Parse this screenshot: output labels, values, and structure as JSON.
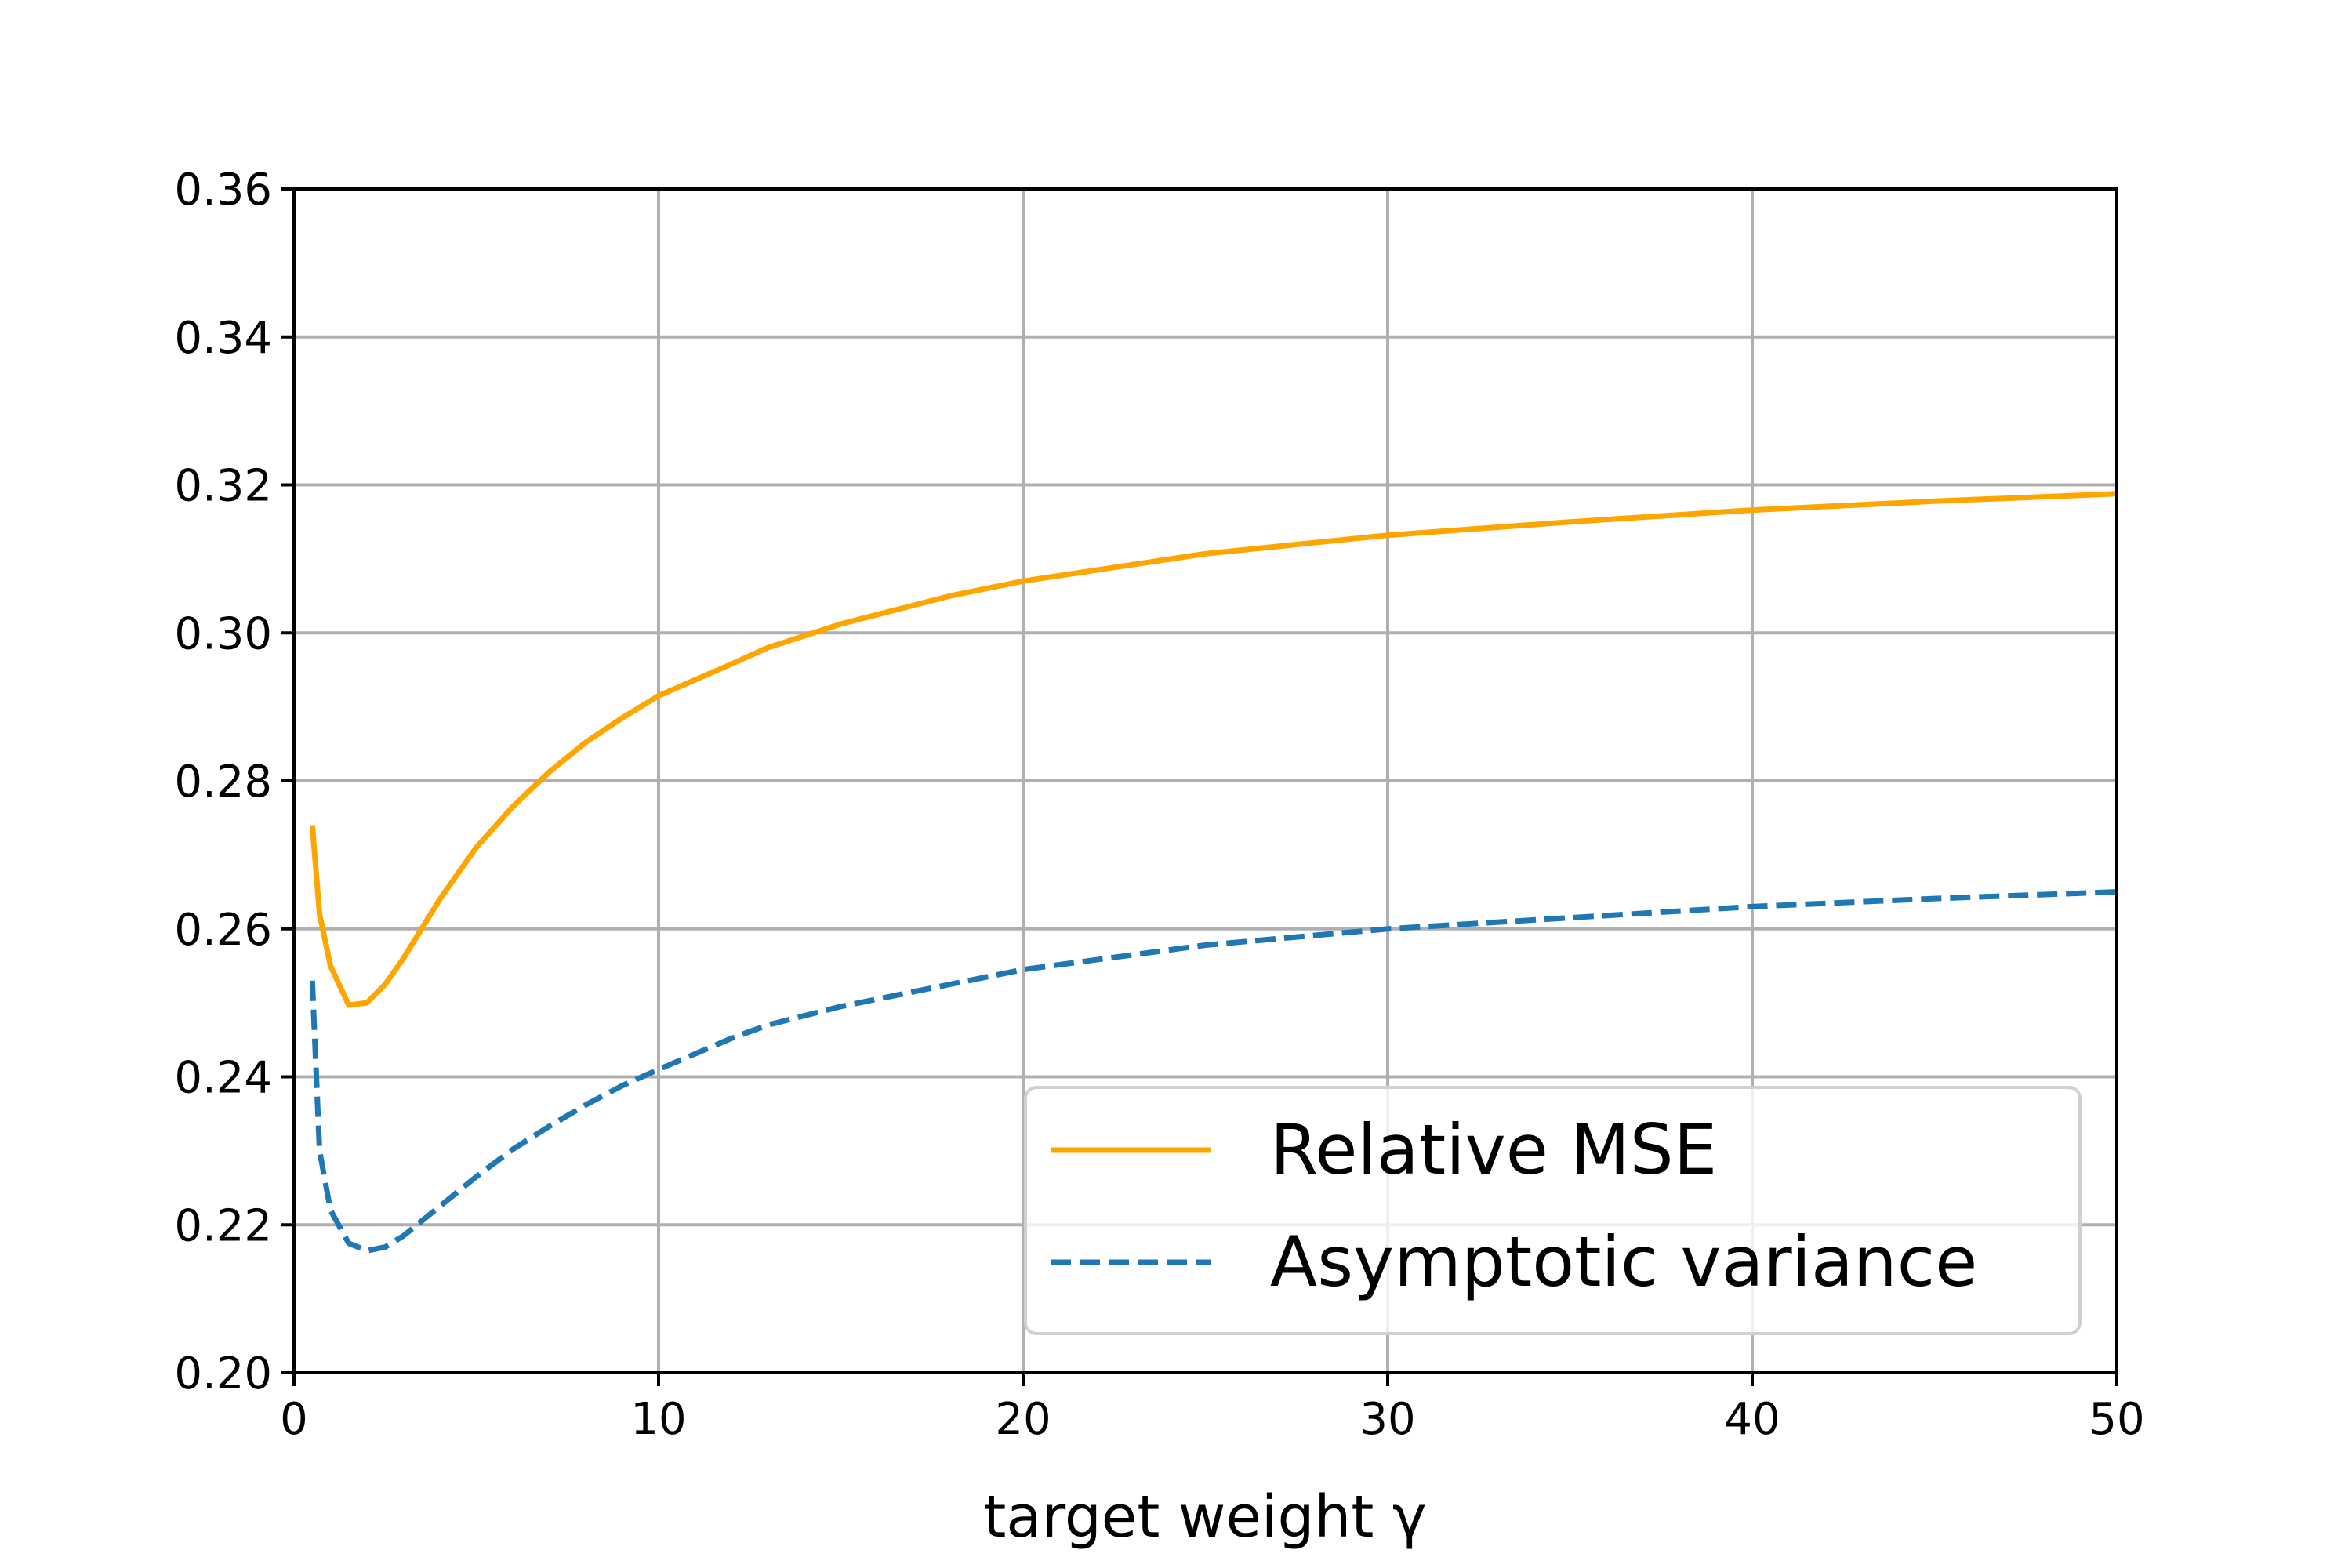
{
  "chart_data": {
    "type": "line",
    "title": "",
    "xlabel": "target weight γ",
    "ylabel": "",
    "xlim": [
      0,
      50
    ],
    "ylim": [
      0.2,
      0.36
    ],
    "xticks": [
      "0",
      "10",
      "20",
      "30",
      "40",
      "50"
    ],
    "yticks": [
      "0.20",
      "0.22",
      "0.24",
      "0.26",
      "0.28",
      "0.30",
      "0.32",
      "0.34",
      "0.36"
    ],
    "grid": true,
    "legend_position": "lower-right",
    "series": [
      {
        "name": "Relative MSE",
        "color": "#FFA500",
        "style": "solid",
        "x": [
          0.5,
          0.7,
          1.0,
          1.5,
          2.0,
          2.5,
          3,
          4,
          5,
          6,
          7,
          8,
          9,
          10,
          12,
          13,
          15,
          18,
          20,
          25,
          30,
          35,
          40,
          45,
          50
        ],
        "y": [
          0.274,
          0.262,
          0.255,
          0.2497,
          0.25,
          0.2525,
          0.256,
          0.264,
          0.271,
          0.2765,
          0.2812,
          0.2852,
          0.2885,
          0.2915,
          0.2958,
          0.298,
          0.3012,
          0.305,
          0.307,
          0.3107,
          0.3132,
          0.315,
          0.3166,
          0.3178,
          0.3188
        ]
      },
      {
        "name": "Asymptotic variance",
        "color": "#1f77b4",
        "style": "dashed",
        "x": [
          0.5,
          0.7,
          1.0,
          1.5,
          2.0,
          2.5,
          3,
          4,
          5,
          6,
          7,
          8,
          9,
          10,
          12,
          13,
          15,
          18,
          20,
          25,
          30,
          35,
          40,
          45,
          50
        ],
        "y": [
          0.253,
          0.23,
          0.222,
          0.2175,
          0.2165,
          0.217,
          0.2185,
          0.2225,
          0.2265,
          0.2302,
          0.2333,
          0.2362,
          0.2388,
          0.241,
          0.2452,
          0.247,
          0.2495,
          0.2525,
          0.2545,
          0.2578,
          0.26,
          0.2615,
          0.263,
          0.2641,
          0.265
        ]
      }
    ]
  }
}
